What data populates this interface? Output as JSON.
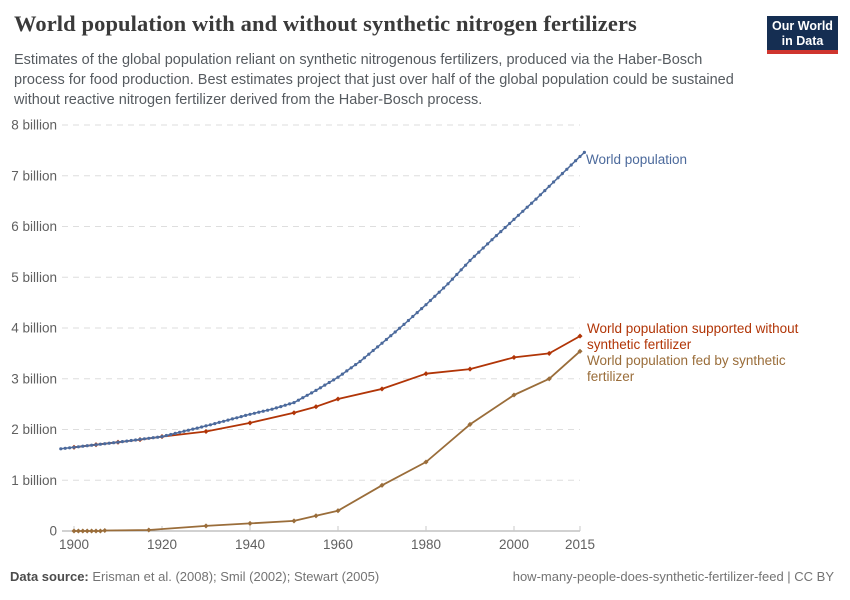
{
  "header": {
    "title": "World population with and without synthetic nitrogen fertilizers",
    "subtitle": "Estimates of the global population reliant on synthetic nitrogenous fertilizers, produced via the Haber-Bosch process for food production. Best estimates project that just over half of the global population could be sustained without reactive nitrogen fertilizer derived from the Haber-Bosch process.",
    "logo": {
      "line1": "Our World",
      "line2": "in Data",
      "bg_color": "#152e52",
      "stripe_color": "#cf352e"
    }
  },
  "chart_data": {
    "type": "line",
    "title": "World population with and without synthetic nitrogen fertilizers",
    "xlabel": "",
    "ylabel": "",
    "xlim": [
      1897,
      2016
    ],
    "ylim": [
      0,
      8
    ],
    "grid": "horizontal-dashed",
    "grid_color": "#dedede",
    "x_ticks": [
      1900,
      1920,
      1940,
      1960,
      1980,
      2000,
      2015
    ],
    "y_ticks": [
      {
        "value": 0,
        "label": "0"
      },
      {
        "value": 1,
        "label": "1 billion"
      },
      {
        "value": 2,
        "label": "2 billion"
      },
      {
        "value": 3,
        "label": "3 billion"
      },
      {
        "value": 4,
        "label": "4 billion"
      },
      {
        "value": 5,
        "label": "5 billion"
      },
      {
        "value": 6,
        "label": "6 billion"
      },
      {
        "value": 7,
        "label": "7 billion"
      },
      {
        "value": 8,
        "label": "8 billion"
      }
    ],
    "legend_position": "end-of-line-labels",
    "series": [
      {
        "name": "World population",
        "label_lines": [
          "World population"
        ],
        "color": "#4C6A9C",
        "marker": "circle",
        "annual_markers": true,
        "points": [
          [
            1897,
            1.62
          ],
          [
            1900,
            1.65
          ],
          [
            1910,
            1.75
          ],
          [
            1920,
            1.86
          ],
          [
            1930,
            2.07
          ],
          [
            1940,
            2.3
          ],
          [
            1945,
            2.4
          ],
          [
            1950,
            2.53
          ],
          [
            1955,
            2.77
          ],
          [
            1960,
            3.03
          ],
          [
            1965,
            3.34
          ],
          [
            1970,
            3.7
          ],
          [
            1975,
            4.07
          ],
          [
            1980,
            4.46
          ],
          [
            1985,
            4.87
          ],
          [
            1990,
            5.33
          ],
          [
            1995,
            5.74
          ],
          [
            2000,
            6.14
          ],
          [
            2005,
            6.54
          ],
          [
            2010,
            6.96
          ],
          [
            2015,
            7.38
          ],
          [
            2016,
            7.46
          ]
        ]
      },
      {
        "name": "World population supported without synthetic fertilizer",
        "label_lines": [
          "World population supported without",
          "synthetic fertilizer"
        ],
        "color": "#B13507",
        "marker": "diamond",
        "annual_markers": false,
        "points": [
          [
            1900,
            1.65
          ],
          [
            1905,
            1.7
          ],
          [
            1910,
            1.75
          ],
          [
            1915,
            1.8
          ],
          [
            1920,
            1.86
          ],
          [
            1930,
            1.96
          ],
          [
            1940,
            2.13
          ],
          [
            1950,
            2.33
          ],
          [
            1955,
            2.45
          ],
          [
            1960,
            2.6
          ],
          [
            1970,
            2.8
          ],
          [
            1980,
            3.1
          ],
          [
            1990,
            3.19
          ],
          [
            2000,
            3.42
          ],
          [
            2008,
            3.5
          ],
          [
            2015,
            3.84
          ]
        ]
      },
      {
        "name": "World population fed by synthetic fertilizer",
        "label_lines": [
          "World population fed by synthetic",
          "fertilizer"
        ],
        "color": "#9A6D3A",
        "marker": "diamond",
        "annual_markers": false,
        "points": [
          [
            1900,
            0
          ],
          [
            1901,
            0
          ],
          [
            1902,
            0
          ],
          [
            1903,
            0
          ],
          [
            1904,
            0
          ],
          [
            1905,
            0
          ],
          [
            1906,
            0
          ],
          [
            1907,
            0.01
          ],
          [
            1917,
            0.02
          ],
          [
            1930,
            0.1
          ],
          [
            1940,
            0.15
          ],
          [
            1950,
            0.2
          ],
          [
            1955,
            0.3
          ],
          [
            1960,
            0.4
          ],
          [
            1970,
            0.9
          ],
          [
            1980,
            1.36
          ],
          [
            1990,
            2.1
          ],
          [
            2000,
            2.68
          ],
          [
            2008,
            3.0
          ],
          [
            2015,
            3.54
          ]
        ]
      }
    ]
  },
  "footer": {
    "datasource_label": "Data source:",
    "datasource_value": " Erisman et al. (2008); Smil (2002); Stewart (2005)",
    "permalink": "how-many-people-does-synthetic-fertilizer-feed | CC BY"
  }
}
